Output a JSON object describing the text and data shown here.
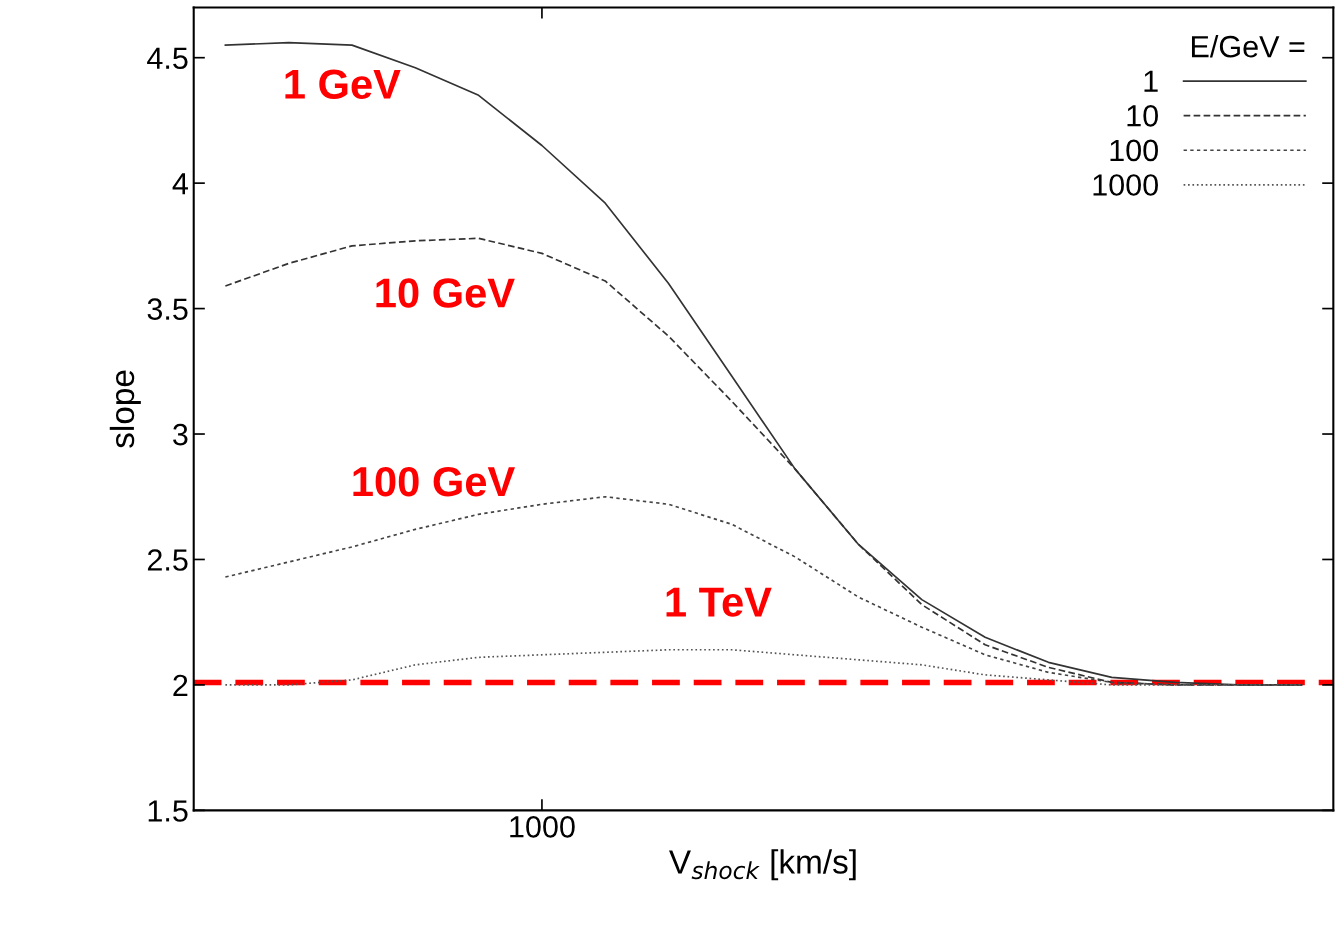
{
  "chart_data": {
    "type": "line",
    "xlabel": "V$_{shock}$ [km/s]",
    "ylabel": "slope",
    "legend_title": "E/GeV =",
    "legend": "top right",
    "grid": false,
    "marker": "none",
    "categories": [
      null,
      null,
      null,
      null,
      null,
      "1000",
      null,
      null,
      null,
      null,
      null,
      null,
      null,
      null,
      null,
      null,
      null,
      null
    ],
    "ylim": [
      1.5,
      4.7
    ],
    "yticks": [
      {
        "value": 1.5,
        "label": "1.5"
      },
      {
        "value": 2,
        "label": "2"
      },
      {
        "value": 2.5,
        "label": "2.5"
      },
      {
        "value": 3,
        "label": "3"
      },
      {
        "value": 3.5,
        "label": "3.5"
      },
      {
        "value": 4,
        "label": "4"
      },
      {
        "value": 4.5,
        "label": "4.5"
      }
    ],
    "series": [
      {
        "name": "1",
        "color": "#333333",
        "line_style": "solid",
        "values": [
          4.55,
          4.56,
          4.55,
          4.46,
          4.35,
          4.15,
          3.92,
          3.6,
          3.23,
          2.86,
          2.56,
          2.34,
          2.19,
          2.09,
          2.03,
          2.01,
          2.0,
          2.0
        ]
      },
      {
        "name": "10",
        "color": "#333333",
        "line_style": "dashed",
        "values": [
          3.59,
          3.68,
          3.75,
          3.77,
          3.78,
          3.72,
          3.61,
          3.39,
          3.13,
          2.86,
          2.56,
          2.32,
          2.16,
          2.07,
          2.01,
          2.0,
          2.0,
          2.0
        ]
      },
      {
        "name": "100",
        "color": "#444444",
        "line_style": "dashed",
        "values": [
          2.43,
          2.49,
          2.55,
          2.62,
          2.68,
          2.72,
          2.75,
          2.72,
          2.64,
          2.51,
          2.35,
          2.23,
          2.12,
          2.05,
          2.01,
          2.0,
          2.0,
          2.0
        ]
      },
      {
        "name": "1000",
        "color": "#555555",
        "line_style": "dotted",
        "values": [
          2.0,
          2.0,
          2.02,
          2.08,
          2.11,
          2.12,
          2.13,
          2.14,
          2.14,
          2.12,
          2.1,
          2.08,
          2.04,
          2.02,
          2.0,
          2.0,
          2.0,
          2.0
        ]
      }
    ],
    "ref_lines": [
      {
        "axis": "y",
        "value": 2.01,
        "color": "#ff0000",
        "line_style": "dashed"
      }
    ],
    "annotations": [
      "1 GeV",
      "10 GeV",
      "100 GeV",
      "1 TeV"
    ]
  }
}
